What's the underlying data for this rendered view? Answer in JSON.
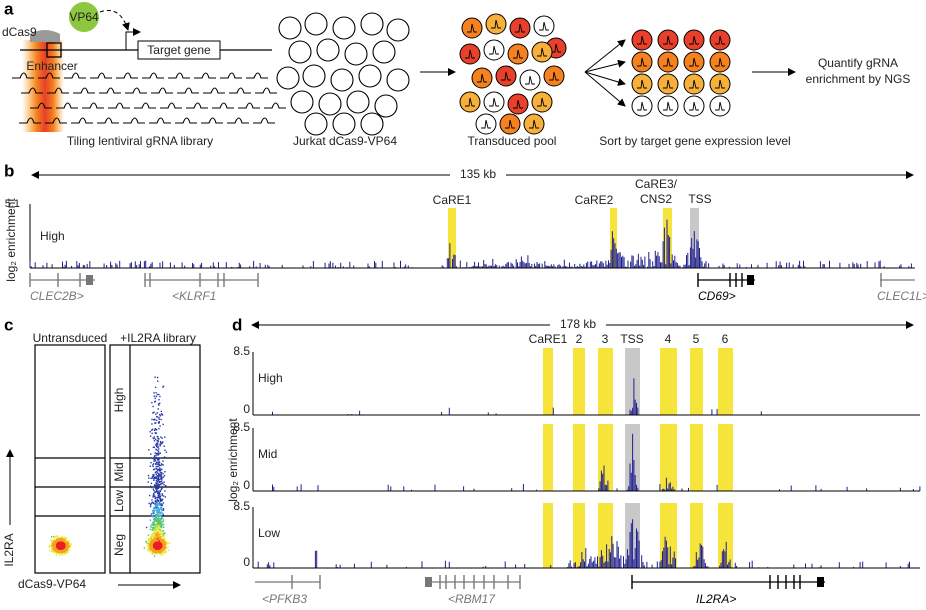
{
  "panel_labels": [
    "a",
    "b",
    "c",
    "d"
  ],
  "panel_a": {
    "dcas9": "dCas9",
    "vp64": "VP64",
    "target_gene": "Target gene",
    "enhancer": "Enhancer",
    "library_caption": "Tiling lentiviral gRNA library",
    "cells_caption": "Jurkat dCas9-VP64",
    "pool_caption": "Transduced pool",
    "sort_caption": "Sort by target gene expression level",
    "quantify_caption": [
      "Quantify gRNA",
      "enrichment by NGS"
    ]
  },
  "panel_b": {
    "scale": "135 kb",
    "ymax": "5.1",
    "ylabel": "log₂ enrichment",
    "track": "High",
    "regions": [
      "CaRE1",
      "CaRE2",
      "CaRE3/",
      "CNS2",
      "TSS"
    ],
    "genes": [
      "CLEC2B>",
      "<KLRF1",
      "CD69>",
      "CLEC1L>"
    ]
  },
  "panel_c": {
    "titles": [
      "Untransduced",
      "+IL2RA library"
    ],
    "gates": [
      "High",
      "Mid",
      "Low",
      "Neg"
    ],
    "ylabel": "IL2RA",
    "xlabel": "dCas9-VP64"
  },
  "panel_d": {
    "scale": "178 kb",
    "ylabel": "log₂ enrichment",
    "regions": [
      "CaRE1",
      "2",
      "3",
      "TSS",
      "4",
      "5",
      "6"
    ],
    "tracks": [
      {
        "name": "High",
        "ymax": "8.5",
        "ymin": "0"
      },
      {
        "name": "Mid",
        "ymax": "8.5",
        "ymin": "0"
      },
      {
        "name": "Low",
        "ymax": "8.5",
        "ymin": "0"
      }
    ],
    "genes": [
      "<PFKB3",
      "<RBM17",
      "IL2RA>"
    ]
  }
}
